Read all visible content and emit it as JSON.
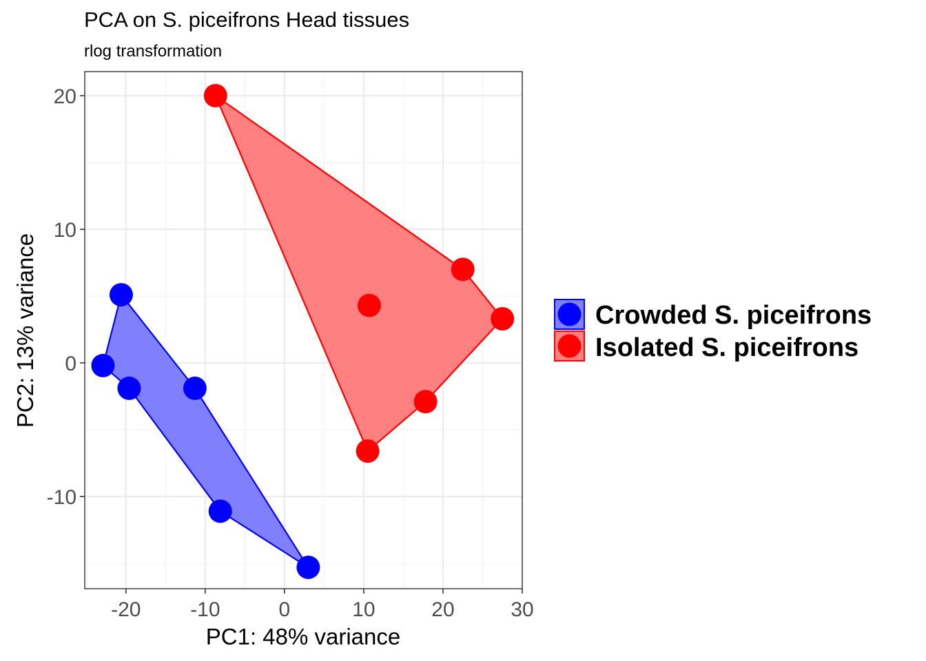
{
  "chart_data": {
    "type": "scatter",
    "title": "PCA on S. piceifrons Head tissues",
    "subtitle": "rlog transformation",
    "xlabel": "PC1: 48% variance",
    "ylabel": "PC2: 13% variance",
    "xlim": [
      -25.2,
      30
    ],
    "ylim": [
      -16.9,
      21.8
    ],
    "x_ticks": [
      -20,
      -10,
      0,
      10,
      20,
      30
    ],
    "x_tick_labels": [
      "-20",
      "-10",
      "0",
      "10",
      "20",
      "30"
    ],
    "y_ticks": [
      -10,
      0,
      10,
      20
    ],
    "y_tick_labels": [
      "-10",
      "0",
      "10",
      "20"
    ],
    "grid": true,
    "legend_position": "right",
    "series": [
      {
        "name": "Crowded S. piceifrons",
        "color": "#0000ff",
        "fill": "#8080ff",
        "points": [
          {
            "x": -20.6,
            "y": 5.1
          },
          {
            "x": -22.9,
            "y": -0.2
          },
          {
            "x": -19.6,
            "y": -1.9
          },
          {
            "x": -11.3,
            "y": -1.9
          },
          {
            "x": -8.1,
            "y": -11.1
          },
          {
            "x": 3.0,
            "y": -15.3
          }
        ],
        "hull": [
          [
            -20.6,
            5.1
          ],
          [
            -11.3,
            -1.9
          ],
          [
            3.0,
            -15.3
          ],
          [
            -8.1,
            -11.1
          ],
          [
            -19.6,
            -1.9
          ],
          [
            -22.9,
            -0.2
          ]
        ]
      },
      {
        "name": "Isolated S. piceifrons",
        "color": "#ff0000",
        "fill": "#ff8080",
        "points": [
          {
            "x": -8.7,
            "y": 20.0
          },
          {
            "x": 22.5,
            "y": 7.0
          },
          {
            "x": 10.7,
            "y": 4.3
          },
          {
            "x": 27.5,
            "y": 3.3
          },
          {
            "x": 17.8,
            "y": -2.9
          },
          {
            "x": 10.5,
            "y": -6.6
          }
        ],
        "hull": [
          [
            -8.7,
            20.0
          ],
          [
            22.5,
            7.0
          ],
          [
            27.5,
            3.3
          ],
          [
            17.8,
            -2.9
          ],
          [
            10.5,
            -6.6
          ]
        ]
      }
    ]
  }
}
